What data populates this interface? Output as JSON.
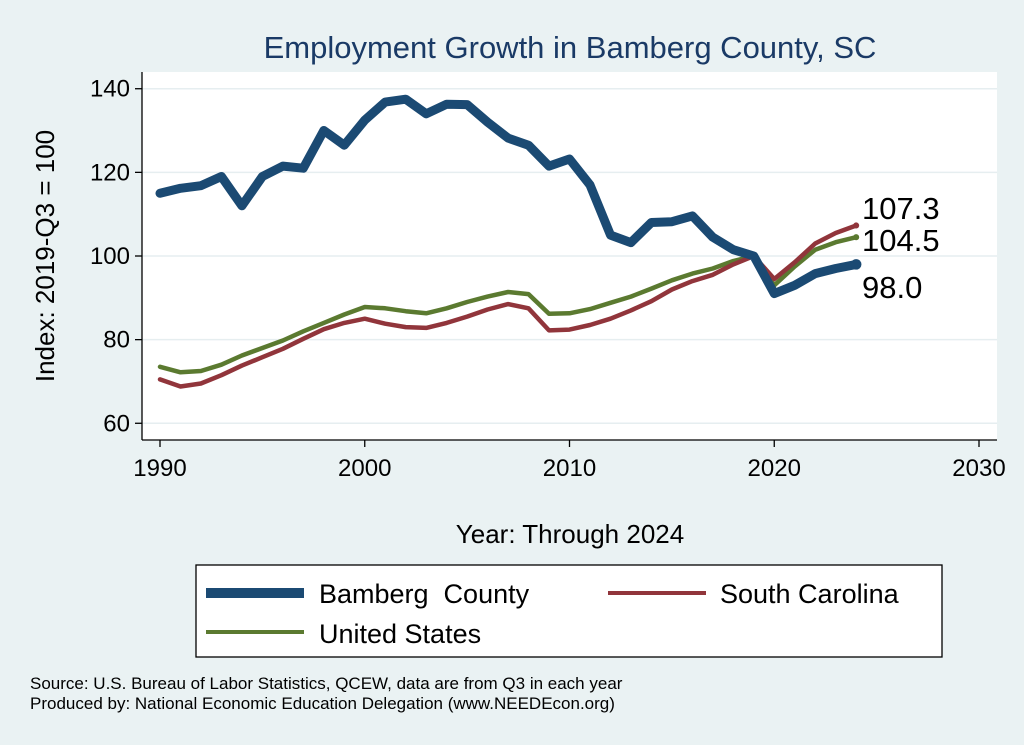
{
  "chart_data": {
    "type": "line",
    "title": "Employment Growth in Bamberg County, SC",
    "xlabel": "Year: Through 2024",
    "ylabel": "Index: 2019-Q3 = 100",
    "xlim": [
      1990,
      2030
    ],
    "ylim": [
      56,
      144
    ],
    "x_ticks": [
      1990,
      2000,
      2010,
      2020,
      2030
    ],
    "y_ticks": [
      60,
      80,
      100,
      120,
      140
    ],
    "grid": true,
    "legend_position": "bottom",
    "x": [
      1990,
      1991,
      1992,
      1993,
      1994,
      1995,
      1996,
      1997,
      1998,
      1999,
      2000,
      2001,
      2002,
      2003,
      2004,
      2005,
      2006,
      2007,
      2008,
      2009,
      2010,
      2011,
      2012,
      2013,
      2014,
      2015,
      2016,
      2017,
      2018,
      2019,
      2020,
      2021,
      2022,
      2023,
      2024
    ],
    "series": [
      {
        "name": "Bamberg  County",
        "color": "#1b4a73",
        "end_label": "98.0",
        "values": [
          115.0,
          116.2,
          116.8,
          119.0,
          112.0,
          119.0,
          121.5,
          121.0,
          130.0,
          126.5,
          132.5,
          136.8,
          137.5,
          134.0,
          136.3,
          136.2,
          132.0,
          128.2,
          126.5,
          121.5,
          123.2,
          117.0,
          105.0,
          103.2,
          108.0,
          108.2,
          109.6,
          104.5,
          101.5,
          100.0,
          91.0,
          93.0,
          95.8,
          97.0,
          98.0
        ]
      },
      {
        "name": "South Carolina",
        "color": "#91353b",
        "end_label": "107.3",
        "values": [
          70.5,
          68.8,
          69.5,
          71.5,
          73.8,
          75.8,
          77.8,
          80.2,
          82.5,
          84.0,
          85.0,
          83.8,
          83.0,
          82.8,
          84.0,
          85.5,
          87.2,
          88.5,
          87.5,
          82.2,
          82.4,
          83.5,
          85.0,
          87.0,
          89.2,
          92.0,
          94.0,
          95.5,
          98.0,
          100.0,
          94.5,
          98.5,
          103.0,
          105.5,
          107.3
        ]
      },
      {
        "name": "United States",
        "color": "#5b7a30",
        "end_label": "104.5",
        "values": [
          73.5,
          72.2,
          72.5,
          74.0,
          76.2,
          78.0,
          79.8,
          82.0,
          84.0,
          86.0,
          87.8,
          87.5,
          86.8,
          86.3,
          87.5,
          89.0,
          90.3,
          91.4,
          90.9,
          86.2,
          86.3,
          87.3,
          88.8,
          90.3,
          92.2,
          94.2,
          95.8,
          97.0,
          98.8,
          100.0,
          93.0,
          97.5,
          101.5,
          103.3,
          104.5
        ]
      }
    ],
    "source_lines": [
      "Source: U.S. Bureau of Labor Statistics, QCEW, data are from Q3 in each year",
      "Produced by: National Economic Education Delegation (www.NEEDEcon.org)"
    ]
  }
}
